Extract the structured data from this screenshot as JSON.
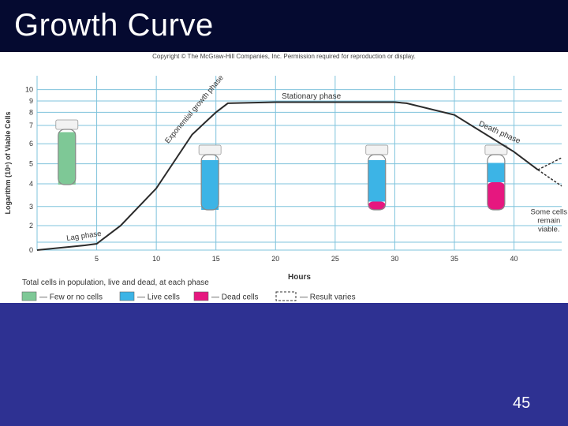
{
  "slide": {
    "title": "Growth Curve",
    "number": "45",
    "copyright": "Copyright © The McGraw-Hill Companies, Inc. Permission required for reproduction or display."
  },
  "colors": {
    "background": "#2e3192",
    "title_bar": "#050a30",
    "grid": "#7fc3dc",
    "curve": "#2b2b2b",
    "few_or_no_cells": "#7ec896",
    "live_cells": "#3cb4e6",
    "dead_cells": "#e6177f"
  },
  "chart_data": {
    "type": "line",
    "title": "",
    "xlabel": "Hours",
    "ylabel": "Logarithm (10ⁿ) of Viable Cells",
    "xlim": [
      0,
      44
    ],
    "ylim": [
      0,
      10
    ],
    "x_ticks": [
      5,
      10,
      15,
      20,
      25,
      30,
      35,
      40
    ],
    "y_ticks": [
      0,
      1,
      2,
      3,
      4,
      5,
      6,
      7,
      8,
      9,
      10
    ],
    "y_tick_labels": [
      "0",
      "",
      "2",
      "3",
      "4",
      "5",
      "6",
      "7",
      "8",
      "9",
      "10"
    ],
    "grid": true,
    "series": [
      {
        "x": [
          0,
          2,
          4,
          5,
          7,
          10,
          13,
          15,
          16,
          20,
          25,
          30,
          31,
          35,
          40,
          42
        ],
        "y": [
          0,
          0.3,
          0.6,
          0.8,
          2.0,
          3.8,
          6.5,
          8.0,
          8.8,
          8.9,
          8.9,
          8.9,
          8.8,
          7.8,
          5.6,
          4.7
        ]
      }
    ],
    "result_varies": {
      "x": [
        42,
        44
      ],
      "upper_y": [
        4.7,
        5.3
      ],
      "lower_y": [
        4.7,
        3.9
      ]
    },
    "annotations": [
      {
        "text": "Lag phase",
        "x": 2.5,
        "y": 1.1
      },
      {
        "text": "Exponential growth phase",
        "x": 11,
        "y": 6.0
      },
      {
        "text": "Stationary phase",
        "x": 23,
        "y": 9.2
      },
      {
        "text": "Death phase",
        "x": 37,
        "y": 7.0
      },
      {
        "text": "Some cells remain viable.",
        "x": 42,
        "y": 2.6
      }
    ],
    "tubes": [
      {
        "x": 2.5,
        "content": "few_or_no_cells",
        "live_fraction": 0.95,
        "dead_fraction": 0
      },
      {
        "x": 14.5,
        "content": "live_cells",
        "live_fraction": 0.9,
        "dead_fraction": 0
      },
      {
        "x": 28.5,
        "content": "live_and_dead",
        "live_fraction": 0.75,
        "dead_fraction": 0.15
      },
      {
        "x": 38.5,
        "content": "live_and_dead",
        "live_fraction": 0.35,
        "dead_fraction": 0.5
      }
    ],
    "legend": {
      "caption": "Total cells in population, live and dead, at each phase",
      "placement": "bottom-left",
      "items": [
        {
          "label": "— Few or no cells",
          "color": "#7ec896",
          "style": "swatch"
        },
        {
          "label": "— Live cells",
          "color": "#3cb4e6",
          "style": "swatch"
        },
        {
          "label": "— Dead cells",
          "color": "#e6177f",
          "style": "swatch"
        },
        {
          "label": "— Result varies",
          "color": "#ffffff",
          "style": "dashed"
        }
      ]
    }
  }
}
